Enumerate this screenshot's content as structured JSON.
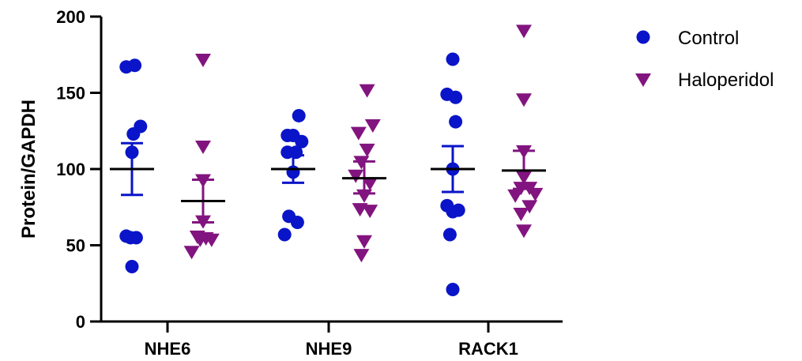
{
  "chart_data": {
    "type": "scatter",
    "title": "",
    "xlabel": "",
    "ylabel": "Protein/GAPDH",
    "ylim": [
      0,
      200
    ],
    "yticks": [
      0,
      50,
      100,
      150,
      200
    ],
    "categories": [
      "NHE6",
      "NHE9",
      "RACK1"
    ],
    "grid": false,
    "legend_position": "top-right",
    "colors": {
      "Control": "#0a14c8",
      "Haloperidol": "#82147f",
      "mean_line": "#000000"
    },
    "series": [
      {
        "name": "Control",
        "marker": "circle",
        "groups": [
          {
            "category": "NHE6",
            "mean": 100,
            "sem_low": 83,
            "sem_high": 117,
            "points": [
              [
                -0.04,
                167
              ],
              [
                0.02,
                168
              ],
              [
                0.06,
                128
              ],
              [
                0.01,
                123
              ],
              [
                0.0,
                111
              ],
              [
                -0.04,
                56
              ],
              [
                0.03,
                55
              ],
              [
                -0.01,
                55
              ],
              [
                0.0,
                36
              ]
            ]
          },
          {
            "category": "NHE9",
            "mean": 100,
            "sem_low": 91,
            "sem_high": 109,
            "points": [
              [
                0.04,
                135
              ],
              [
                -0.04,
                122
              ],
              [
                0.0,
                122
              ],
              [
                0.06,
                118
              ],
              [
                -0.04,
                111
              ],
              [
                0.02,
                111
              ],
              [
                0.0,
                98
              ],
              [
                -0.03,
                69
              ],
              [
                0.03,
                65
              ],
              [
                -0.06,
                57
              ]
            ]
          },
          {
            "category": "RACK1",
            "mean": 100,
            "sem_low": 85,
            "sem_high": 115,
            "points": [
              [
                0.0,
                172
              ],
              [
                -0.04,
                149
              ],
              [
                0.02,
                147
              ],
              [
                0.02,
                131
              ],
              [
                0.0,
                100
              ],
              [
                -0.04,
                76
              ],
              [
                0.04,
                73
              ],
              [
                0.0,
                72
              ],
              [
                -0.02,
                57
              ],
              [
                0.0,
                21
              ]
            ]
          }
        ]
      },
      {
        "name": "Haloperidol",
        "marker": "triangle-down",
        "groups": [
          {
            "category": "NHE6",
            "mean": 79,
            "sem_low": 65,
            "sem_high": 93,
            "points": [
              [
                0.0,
                172
              ],
              [
                0.0,
                115
              ],
              [
                0.0,
                93
              ],
              [
                0.0,
                66
              ],
              [
                -0.04,
                56
              ],
              [
                0.02,
                55
              ],
              [
                -0.02,
                54
              ],
              [
                0.06,
                54
              ],
              [
                -0.08,
                46
              ]
            ]
          },
          {
            "category": "NHE9",
            "mean": 94,
            "sem_low": 84,
            "sem_high": 105,
            "points": [
              [
                0.02,
                152
              ],
              [
                0.06,
                129
              ],
              [
                -0.04,
                124
              ],
              [
                0.02,
                113
              ],
              [
                -0.02,
                105
              ],
              [
                -0.06,
                96
              ],
              [
                0.04,
                91
              ],
              [
                0.0,
                83
              ],
              [
                -0.03,
                74
              ],
              [
                0.04,
                73
              ],
              [
                0.0,
                53
              ],
              [
                -0.02,
                44
              ]
            ]
          },
          {
            "category": "RACK1",
            "mean": 99,
            "sem_low": 87,
            "sem_high": 112,
            "points": [
              [
                0.0,
                191
              ],
              [
                0.0,
                146
              ],
              [
                0.0,
                112
              ],
              [
                0.0,
                95
              ],
              [
                -0.02,
                88
              ],
              [
                0.04,
                88
              ],
              [
                0.08,
                84
              ],
              [
                -0.06,
                83
              ],
              [
                0.04,
                76
              ],
              [
                -0.02,
                71
              ],
              [
                0.0,
                60
              ]
            ]
          }
        ]
      }
    ]
  }
}
